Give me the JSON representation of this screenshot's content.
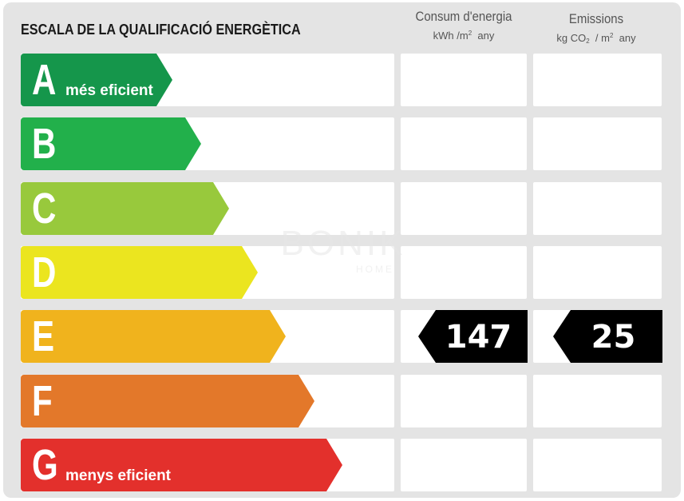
{
  "title": "ESCALA DE LA QUALIFICACIÓ ENERGÈTICA",
  "columns": {
    "energy": {
      "title": "Consum d'energia",
      "unit_main": "kWh /m",
      "unit_sup": "2",
      "unit_tail": "any"
    },
    "emissions": {
      "title": "Emissions",
      "unit_main": "kg CO",
      "unit_sub": "2",
      "unit_mid": "/ m",
      "unit_sup": "2",
      "unit_tail": "any"
    }
  },
  "ratings": [
    {
      "letter": "A",
      "label": "més eficient",
      "color": "#15964b"
    },
    {
      "letter": "B",
      "label": "",
      "color": "#22b04b"
    },
    {
      "letter": "C",
      "label": "",
      "color": "#98c93c"
    },
    {
      "letter": "D",
      "label": "",
      "color": "#ebe51f"
    },
    {
      "letter": "E",
      "label": "",
      "color": "#f0b31d"
    },
    {
      "letter": "F",
      "label": "",
      "color": "#e3782a"
    },
    {
      "letter": "G",
      "label": "menys eficient",
      "color": "#e3302c"
    }
  ],
  "current": {
    "letter": "E",
    "energy_value": "147",
    "emissions_value": "25",
    "badge_color": "#000000"
  },
  "watermark": {
    "name": "BONIK",
    "sub": "HOME"
  }
}
